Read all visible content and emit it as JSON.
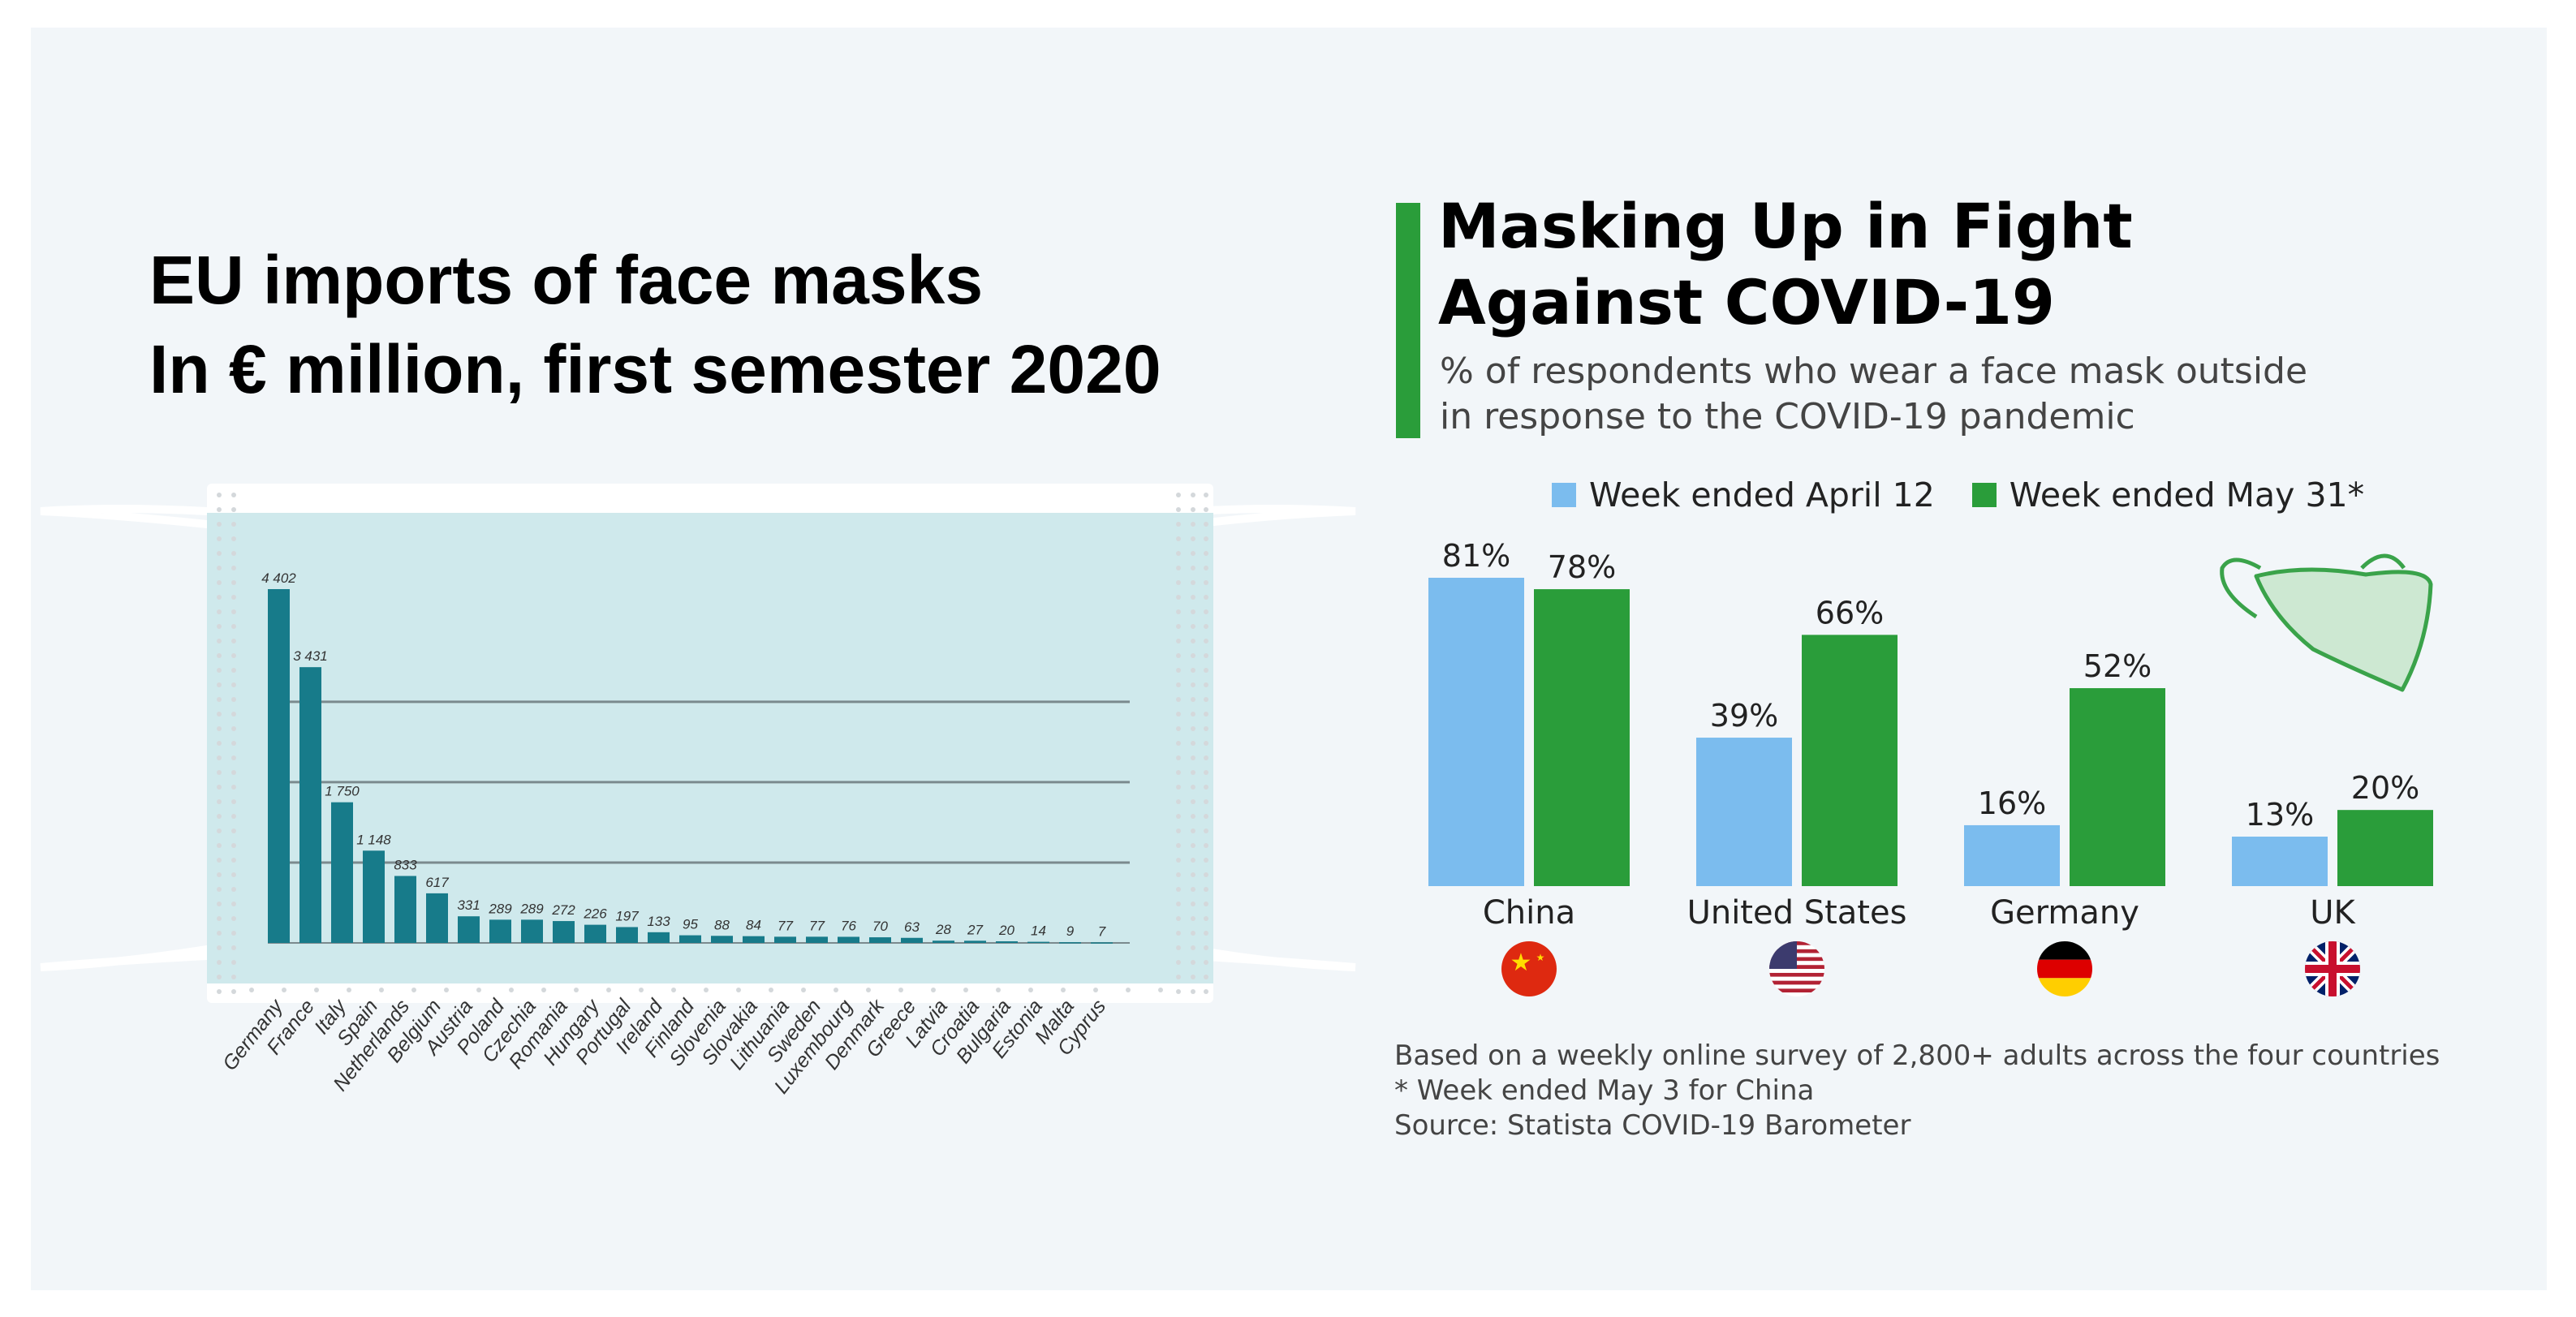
{
  "left": {
    "title_line1": "EU imports of face masks",
    "title_line2": "In € million, first semester 2020"
  },
  "right": {
    "title_line1": "Masking Up in Fight",
    "title_line2": "Against COVID-19",
    "subtitle_line1": "% of respondents who wear a face mask outside",
    "subtitle_line2": "in response to the COVID-19 pandemic",
    "notes": [
      "Based on a weekly online survey of 2,800+ adults across the four countries",
      "* Week ended May 3 for China",
      "Source: Statista COVID-19 Barometer"
    ]
  },
  "colors": {
    "teal_bar": "#177b8a",
    "mask_fill": "#cfe9ec",
    "blue_bar": "#7bbcee",
    "green_bar": "#2a9d3a",
    "accent_green": "#2a9d3a"
  },
  "chart_data": [
    {
      "type": "bar",
      "title": "EU imports of face masks",
      "subtitle": "In € million, first semester 2020",
      "categories": [
        "Germany",
        "France",
        "Italy",
        "Spain",
        "Netherlands",
        "Belgium",
        "Austria",
        "Poland",
        "Czechia",
        "Romania",
        "Hungary",
        "Portugal",
        "Ireland",
        "Finland",
        "Slovenia",
        "Slovakia",
        "Lithuania",
        "Sweden",
        "Luxembourg",
        "Denmark",
        "Greece",
        "Latvia",
        "Croatia",
        "Bulgaria",
        "Estonia",
        "Malta",
        "Cyprus"
      ],
      "values": [
        4402,
        3431,
        1750,
        1148,
        833,
        617,
        331,
        289,
        289,
        272,
        226,
        197,
        133,
        95,
        88,
        84,
        77,
        77,
        76,
        70,
        63,
        28,
        27,
        20,
        14,
        9,
        7
      ],
      "value_labels": [
        "4 402",
        "3 431",
        "1 750",
        "1 148",
        "833",
        "617",
        "331",
        "289",
        "289",
        "272",
        "226",
        "197",
        "133",
        "95",
        "88",
        "84",
        "77",
        "77",
        "76",
        "70",
        "63",
        "28",
        "27",
        "20",
        "14",
        "9",
        "7"
      ],
      "ylim": [
        0,
        4402
      ],
      "grid": true,
      "decorative_icon": "face-mask-illustration"
    },
    {
      "type": "bar",
      "title": "Masking Up in Fight Against COVID-19",
      "categories": [
        "China",
        "United States",
        "Germany",
        "UK"
      ],
      "series": [
        {
          "name": "Week ended April 12",
          "values": [
            81,
            39,
            16,
            13
          ],
          "labels": [
            "81%",
            "39%",
            "16%",
            "13%"
          ],
          "color": "#7bbcee"
        },
        {
          "name": "Week ended May 31*",
          "values": [
            78,
            66,
            52,
            20
          ],
          "labels": [
            "78%",
            "66%",
            "52%",
            "20%"
          ],
          "color": "#2a9d3a"
        }
      ],
      "flags": [
        "china-flag-icon",
        "usa-flag-icon",
        "germany-flag-icon",
        "uk-flag-icon"
      ],
      "legend_position": "top",
      "grid": false,
      "decorative_icon": "face-mask-icon"
    }
  ]
}
